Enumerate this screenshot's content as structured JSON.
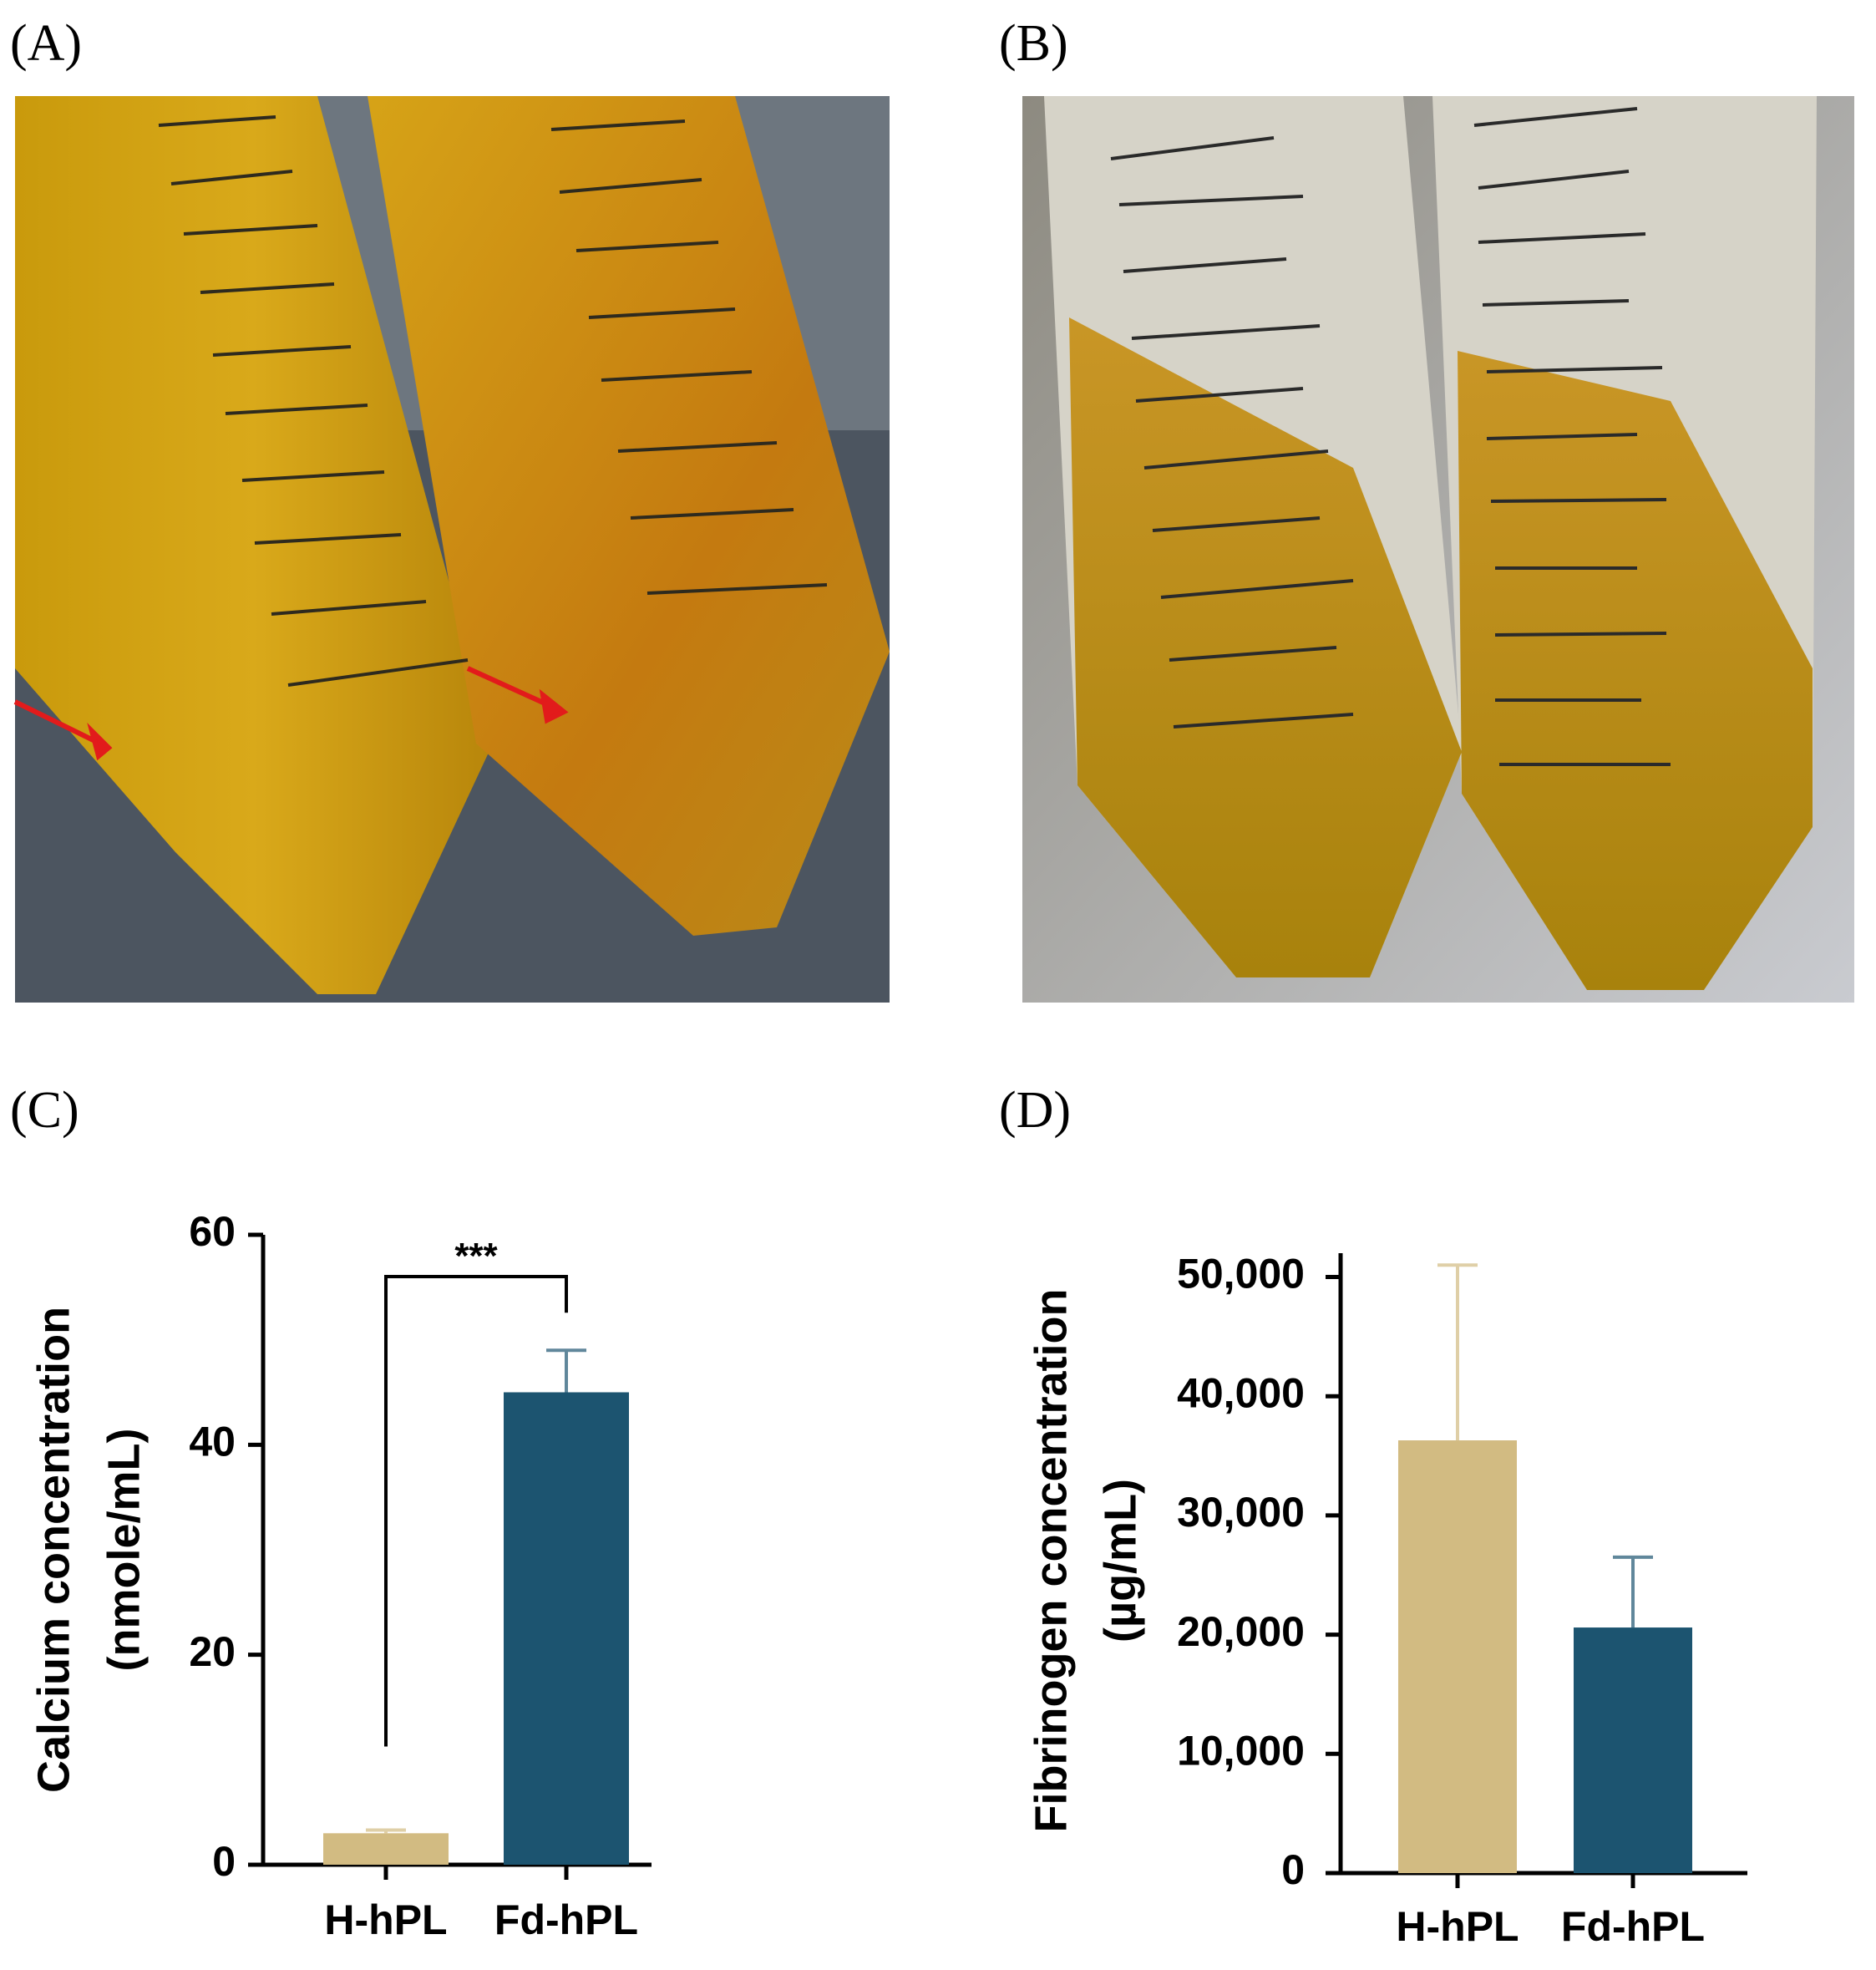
{
  "panels": {
    "A": "(A)",
    "B": "(B)",
    "C": "(C)",
    "D": "(D)"
  },
  "chart_data": [
    {
      "type": "bar",
      "y_label": [
        "Calcium concentration",
        "(nmole/mL)"
      ],
      "categories": [
        "H-hPL",
        "Fd-hPL"
      ],
      "values": [
        3,
        45
      ],
      "errors": [
        0.3,
        4
      ],
      "colors": [
        "#d2bb82",
        "#1c5470"
      ],
      "ylim": [
        0,
        60
      ],
      "yticks": [
        0,
        20,
        40,
        60
      ],
      "significance": {
        "label": "***",
        "between": [
          0,
          1
        ]
      }
    },
    {
      "type": "bar",
      "y_label": [
        "Fibrinogen concentration",
        "(µg/mL)"
      ],
      "categories": [
        "H-hPL",
        "Fd-hPL"
      ],
      "values": [
        36300,
        20600
      ],
      "errors": [
        14700,
        5900
      ],
      "colors": [
        "#d2bb82",
        "#1c5470"
      ],
      "ylim": [
        0,
        52000
      ],
      "yticks": [
        0,
        {
          "value": 10000,
          "label": "10,000"
        },
        {
          "value": 20000,
          "label": "20,000"
        },
        {
          "value": 30000,
          "label": "30,000"
        },
        {
          "value": 40000,
          "label": "40,000"
        },
        {
          "value": 50000,
          "label": "50,000"
        }
      ]
    }
  ]
}
